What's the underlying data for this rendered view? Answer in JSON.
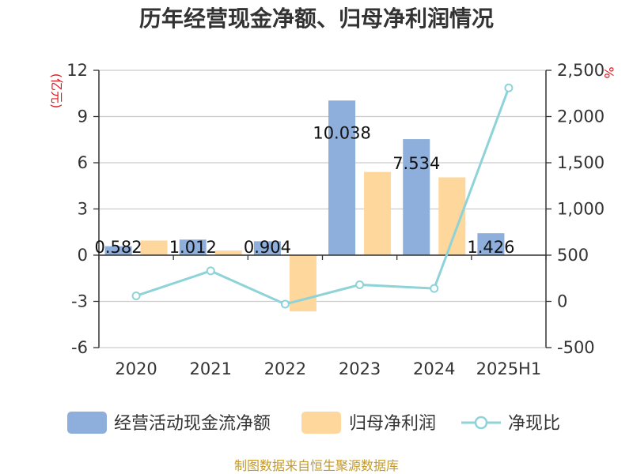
{
  "title": "历年经营现金净额、归母净利润情况",
  "source": "制图数据来自恒生聚源数据库",
  "colors": {
    "operating_cash": "#8eaedb",
    "net_profit": "#fdd79b",
    "ratio_line": "#8dd3d8",
    "unit_red": "#e3161f",
    "grid": "#cccccc",
    "axis": "#333333",
    "source": "#c49a2c"
  },
  "legend": {
    "items": [
      {
        "label": "经营活动现金流净额",
        "marker": "bar",
        "color": "#8eaedb"
      },
      {
        "label": "归母净利润",
        "marker": "bar",
        "color": "#fdd79b"
      },
      {
        "label": "净现比",
        "marker": "line-circle",
        "color": "#8dd3d8"
      }
    ]
  },
  "chart_data": {
    "type": "bar",
    "categories": [
      "2020",
      "2021",
      "2022",
      "2023",
      "2024",
      "2025H1"
    ],
    "left_axis": {
      "unit": "(亿元)",
      "ylim": [
        -6,
        12
      ],
      "ticks": [
        "12",
        "9",
        "6",
        "3",
        "0",
        "-3",
        "-6"
      ],
      "tick_values": [
        12,
        9,
        6,
        3,
        0,
        -3,
        -6
      ]
    },
    "right_axis": {
      "unit": "%",
      "ylim": [
        -500,
        2500
      ],
      "ticks": [
        "2,500",
        "2,000",
        "1,500",
        "1,000",
        "500",
        "0",
        "-500"
      ],
      "tick_values": [
        2500,
        2000,
        1500,
        1000,
        500,
        0,
        -500
      ]
    },
    "grid": true,
    "legend_position": "bottom",
    "series": [
      {
        "name": "经营活动现金流净额",
        "kind": "bar",
        "axis": "left",
        "values": [
          0.582,
          1.012,
          0.904,
          10.038,
          7.534,
          1.426
        ],
        "labels": [
          "0.582",
          "1.012",
          "0.904",
          "10.038",
          "7.534",
          "1.426"
        ]
      },
      {
        "name": "归母净利润",
        "kind": "bar",
        "axis": "left",
        "values": [
          0.95,
          0.3,
          -3.65,
          5.4,
          5.05,
          0.03
        ]
      },
      {
        "name": "净现比",
        "kind": "line",
        "axis": "right",
        "values": [
          60,
          330,
          -30,
          180,
          140,
          2310
        ]
      }
    ]
  }
}
